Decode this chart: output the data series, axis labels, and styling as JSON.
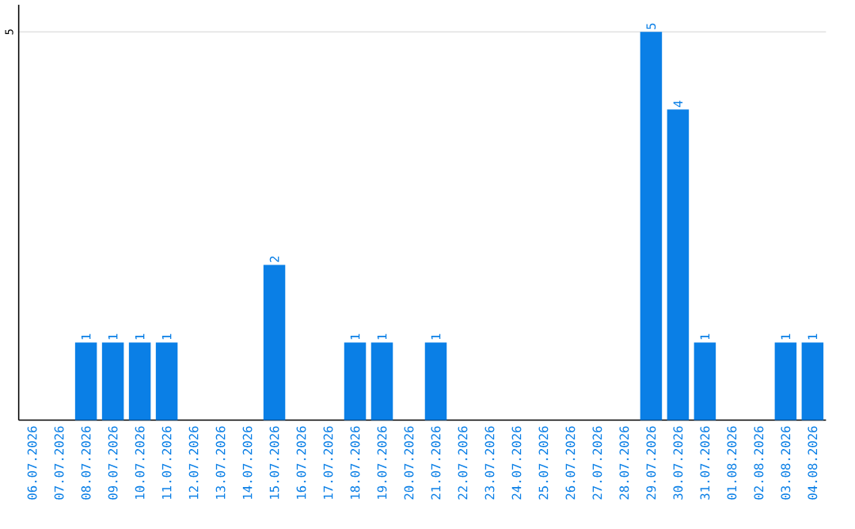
{
  "chart_data": {
    "type": "bar",
    "categories": [
      "06.07.2026",
      "07.07.2026",
      "08.07.2026",
      "09.07.2026",
      "10.07.2026",
      "11.07.2026",
      "12.07.2026",
      "13.07.2026",
      "14.07.2026",
      "15.07.2026",
      "16.07.2026",
      "17.07.2026",
      "18.07.2026",
      "19.07.2026",
      "20.07.2026",
      "21.07.2026",
      "22.07.2026",
      "23.07.2026",
      "24.07.2026",
      "25.07.2026",
      "26.07.2026",
      "27.07.2026",
      "28.07.2026",
      "29.07.2026",
      "30.07.2026",
      "31.07.2026",
      "01.08.2026",
      "02.08.2026",
      "03.08.2026",
      "04.08.2026"
    ],
    "values": [
      0,
      0,
      1,
      1,
      1,
      1,
      0,
      0,
      0,
      2,
      0,
      0,
      1,
      1,
      0,
      1,
      0,
      0,
      0,
      0,
      0,
      0,
      0,
      5,
      4,
      1,
      0,
      0,
      1,
      1
    ],
    "value_labels": [
      null,
      null,
      "1",
      "1",
      "1",
      "1",
      null,
      null,
      null,
      "2",
      null,
      null,
      "1",
      "1",
      null,
      "1",
      null,
      null,
      null,
      null,
      null,
      null,
      null,
      "5",
      "4",
      "1",
      null,
      null,
      "1",
      "1"
    ],
    "color": "#0a7fe6",
    "ylim": [
      0,
      5.35
    ],
    "yticks": [
      5
    ],
    "grid": "y"
  }
}
